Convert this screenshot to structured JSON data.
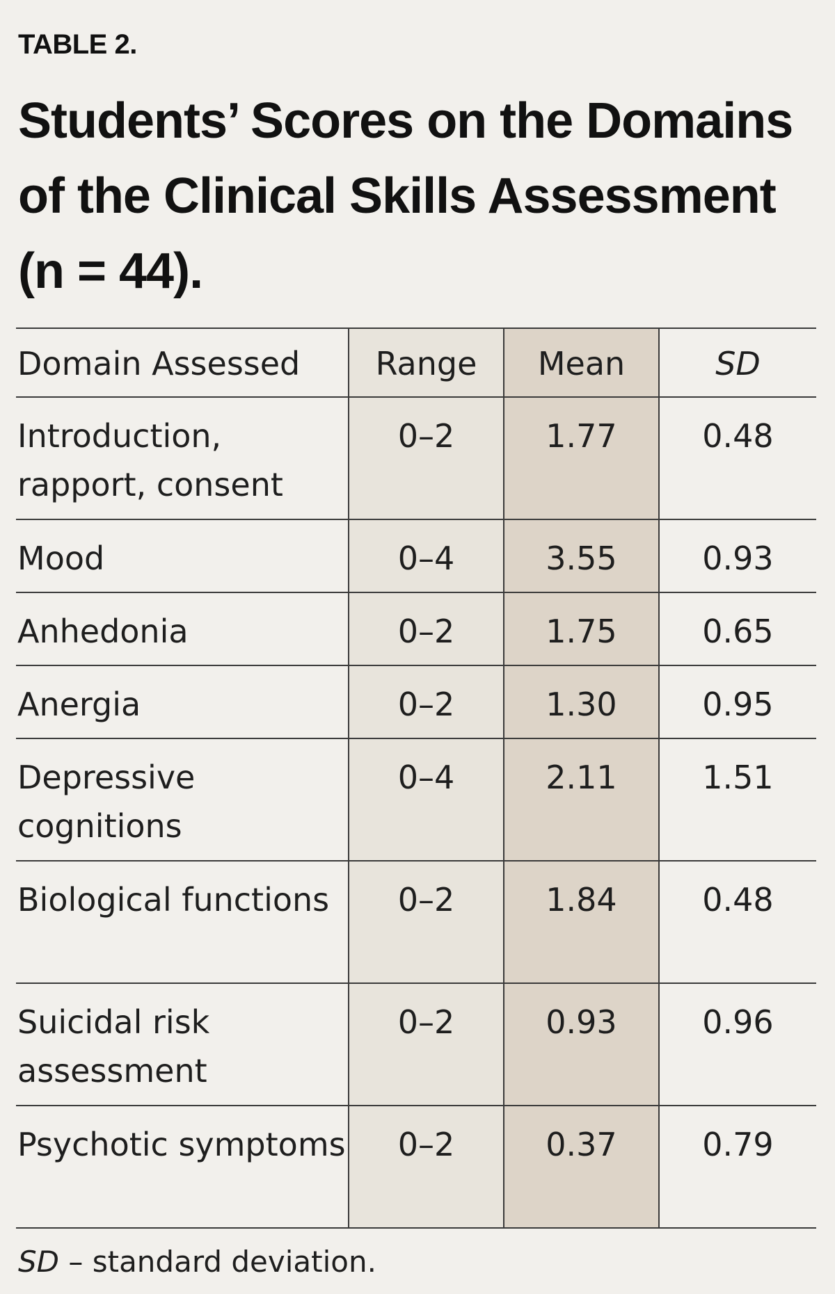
{
  "table_label": "TABLE 2.",
  "title": "Students’ Scores on the Domains of the Clinical Skills Assessment (n = 44).",
  "columns": {
    "domain": "Domain Assessed",
    "range": "Range",
    "mean": "Mean",
    "sd": "SD"
  },
  "rows": [
    {
      "domain": "Introduction, rapport, consent",
      "range": "0–2",
      "mean": "1.77",
      "sd": "0.48"
    },
    {
      "domain": "Mood",
      "range": "0–4",
      "mean": "3.55",
      "sd": "0.93"
    },
    {
      "domain": "Anhedonia",
      "range": "0–2",
      "mean": "1.75",
      "sd": "0.65"
    },
    {
      "domain": "Anergia",
      "range": "0–2",
      "mean": "1.30",
      "sd": "0.95"
    },
    {
      "domain": "Depressive cognitions",
      "range": "0–4",
      "mean": "2.11",
      "sd": "1.51"
    },
    {
      "domain": "Biological functions",
      "range": "0–2",
      "mean": "1.84",
      "sd": "0.48"
    },
    {
      "domain": "Suicidal risk assessment",
      "range": "0–2",
      "mean": "0.93",
      "sd": "0.96"
    },
    {
      "domain": "Psychotic symptoms",
      "range": "0–2",
      "mean": "0.37",
      "sd": "0.79"
    }
  ],
  "footnote": {
    "abbr": "SD",
    "text": " – standard deviation."
  },
  "colors": {
    "background": "#f2f0ec",
    "range_column": "#e8e4dc",
    "mean_column": "#ddd4c8",
    "rules": "#3a3a3a"
  }
}
